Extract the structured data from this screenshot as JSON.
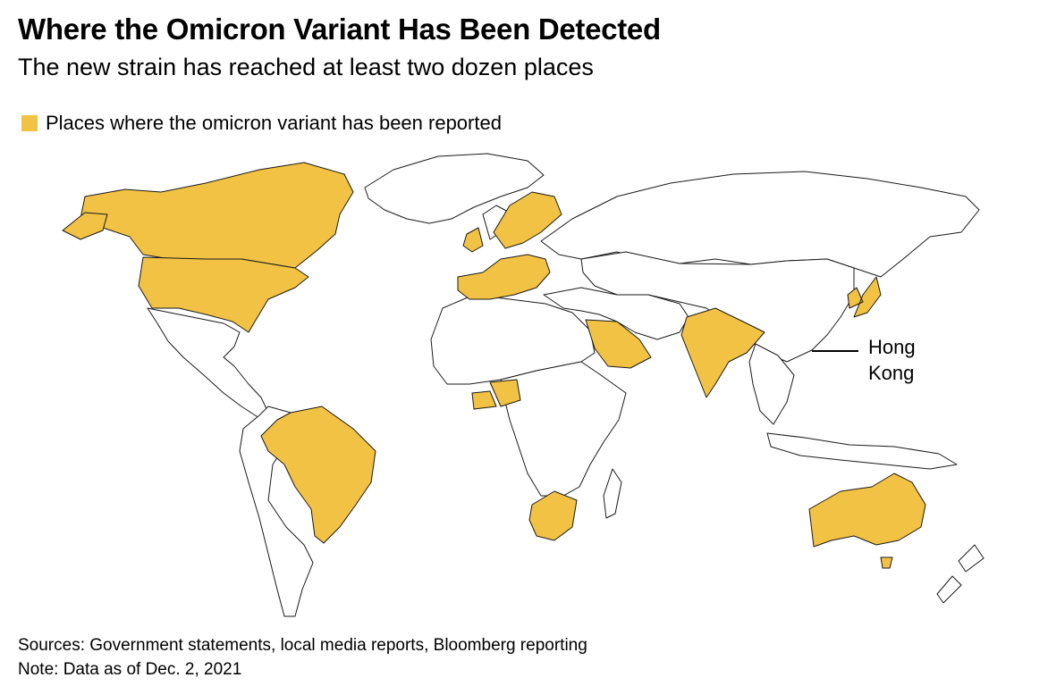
{
  "title": "Where the Omicron Variant Has Been Detected",
  "subtitle": "The new strain has reached at least two dozen places",
  "legend": {
    "label": "Places where the omicron variant has been reported",
    "color": "#f2c244"
  },
  "map": {
    "highlight_color": "#f2c244",
    "outline_color": "#1a1a1a",
    "background_color": "#ffffff"
  },
  "callout": {
    "line1": "Hong",
    "line2": "Kong"
  },
  "footer": {
    "sources": "Sources: Government statements, local media reports, Bloomberg reporting",
    "note": "Note: Data as of Dec. 2, 2021"
  }
}
